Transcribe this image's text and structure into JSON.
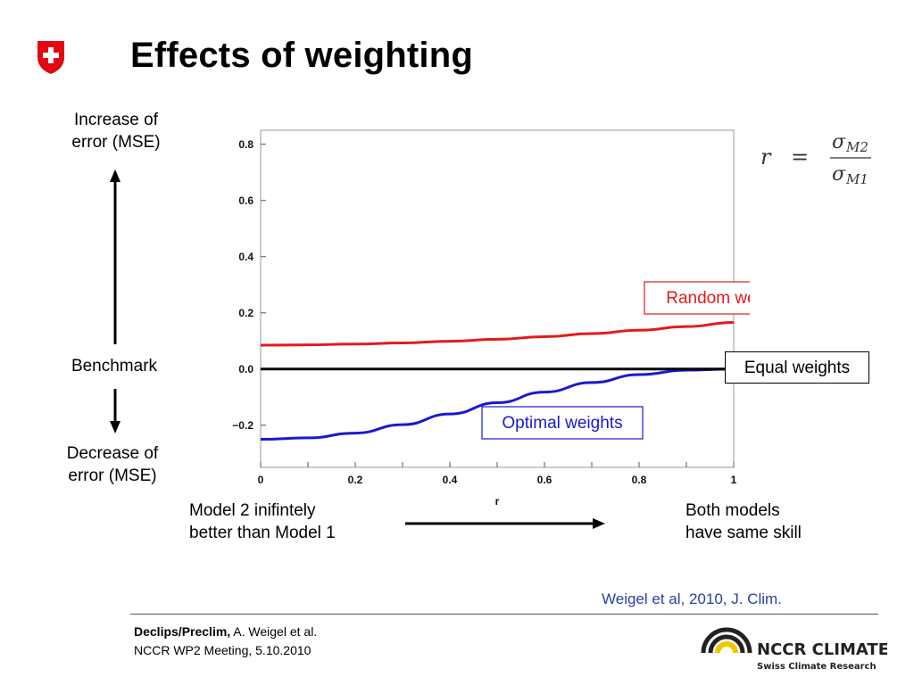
{
  "slide": {
    "title": "Effects of weighting",
    "left_axis": {
      "increase": [
        "Increase of",
        "error (MSE)"
      ],
      "benchmark": "Benchmark",
      "decrease": [
        "Decrease of",
        "error (MSE)"
      ]
    },
    "bottom": {
      "left_note": [
        "Model 2 inifintely",
        "better than Model 1"
      ],
      "right_note": [
        "Both models",
        "have same skill"
      ]
    },
    "formula": {
      "lhs": "r",
      "eq": "=",
      "numerator_sym": "σ",
      "numerator_sub": "M2",
      "denominator_sym": "σ",
      "denominator_sub": "M1"
    },
    "citation": "Weigel et al, 2010, J. Clim.",
    "footer": {
      "bold": "Declips/Preclim,",
      "authors": " A. Weigel et al.",
      "meeting": "NCCR WP2 Meeting, 5.10.2010"
    },
    "logo": {
      "name": "NCCR CLIMATE",
      "tagline": "Swiss Climate Research"
    },
    "colors": {
      "random": "#e31a1c",
      "equal": "#000000",
      "optimal": "#1a1acd",
      "shield": "#e30613",
      "logo_yellow": "#f2c500",
      "citation": "#2a3fa0"
    }
  },
  "chart_data": {
    "type": "line",
    "xlabel": "r",
    "ylabel": "",
    "xlim": [
      0,
      1
    ],
    "ylim": [
      -0.35,
      0.85
    ],
    "xticks": [
      "0",
      "0.2",
      "0.4",
      "0.6",
      "0.8",
      "1"
    ],
    "yticks": [
      "0.8",
      "0.6",
      "0.4",
      "0.2",
      "0.0",
      "−0.2"
    ],
    "x": [
      0,
      0.1,
      0.2,
      0.3,
      0.4,
      0.5,
      0.6,
      0.7,
      0.8,
      0.9,
      1.0
    ],
    "series": [
      {
        "name": "Random weights",
        "color": "#e31a1c",
        "values": [
          0.085,
          0.086,
          0.089,
          0.093,
          0.099,
          0.106,
          0.115,
          0.126,
          0.138,
          0.151,
          0.166
        ]
      },
      {
        "name": "Equal weights",
        "color": "#000000",
        "values": [
          0,
          0,
          0,
          0,
          0,
          0,
          0,
          0,
          0,
          0,
          0
        ]
      },
      {
        "name": "Optimal weights",
        "color": "#1a1acd",
        "values": [
          -0.25,
          -0.245,
          -0.228,
          -0.198,
          -0.16,
          -0.12,
          -0.082,
          -0.048,
          -0.02,
          -0.004,
          0
        ]
      }
    ],
    "legend": "annotations"
  }
}
